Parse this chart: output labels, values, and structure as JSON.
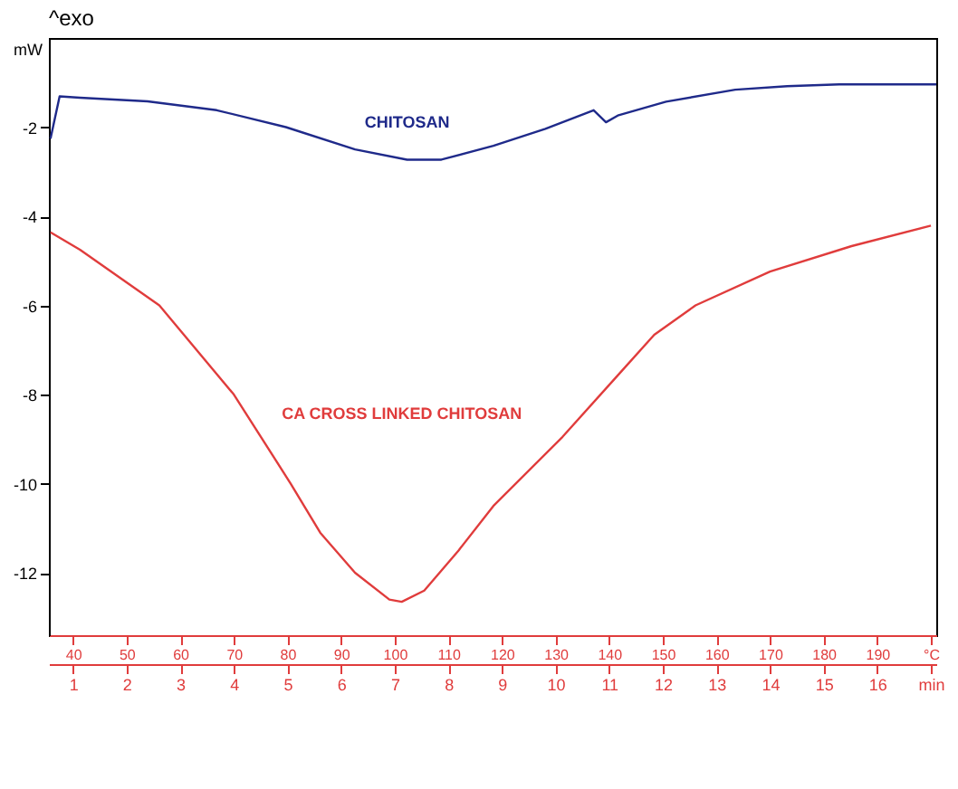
{
  "chart_data": {
    "type": "line",
    "ylabel": "mW",
    "annotations": [
      "^exo"
    ],
    "xlim": [
      35.5,
      201
    ],
    "xticks": [
      40,
      50,
      60,
      70,
      80,
      90,
      100,
      110,
      120,
      130,
      140,
      150,
      160,
      170,
      180,
      190,
      {
        "value": 200,
        "label": "°C"
      }
    ],
    "x2lim": [
      0.55,
      17.1
    ],
    "x2ticks": [
      1,
      2,
      3,
      4,
      5,
      6,
      7,
      8,
      9,
      10,
      11,
      12,
      13,
      14,
      15,
      16,
      {
        "value": 17,
        "label": "min"
      }
    ],
    "ylim": [
      -13.4,
      0
    ],
    "yticks": [
      -2,
      -4,
      -6,
      -8,
      -10,
      -12
    ],
    "grid": false,
    "legend": false,
    "marker": "none",
    "line_style": "solid",
    "series": [
      {
        "name": "CHITOSAN",
        "color": "#1f2a8a",
        "x": [
          35.8,
          37.5,
          41.3,
          53.9,
          66.8,
          79.7,
          92.6,
          102.3,
          108.7,
          118.4,
          128.1,
          137.1,
          139.4,
          141.6,
          150.6,
          163.5,
          173.2,
          182.9,
          201
        ],
        "values": [
          -2.26,
          -1.31,
          -1.34,
          -1.42,
          -1.62,
          -2.0,
          -2.5,
          -2.73,
          -2.73,
          -2.42,
          -2.04,
          -1.62,
          -1.89,
          -1.74,
          -1.43,
          -1.16,
          -1.08,
          -1.04,
          -1.04
        ]
      },
      {
        "name": "CA CROSS LINKED CHITOSAN",
        "color": "#e03c3c",
        "x": [
          35.8,
          41.3,
          56.1,
          70.0,
          80.6,
          86.1,
          92.6,
          99.0,
          101.3,
          105.5,
          111.9,
          118.4,
          131.3,
          141.9,
          148.4,
          156.1,
          170.0,
          185.2,
          200
        ],
        "values": [
          -4.36,
          -4.75,
          -6.0,
          -8.0,
          -10.0,
          -11.1,
          -12.0,
          -12.6,
          -12.65,
          -12.4,
          -11.5,
          -10.5,
          -8.95,
          -7.53,
          -6.66,
          -6.0,
          -5.24,
          -4.67,
          -4.21
        ]
      }
    ]
  }
}
